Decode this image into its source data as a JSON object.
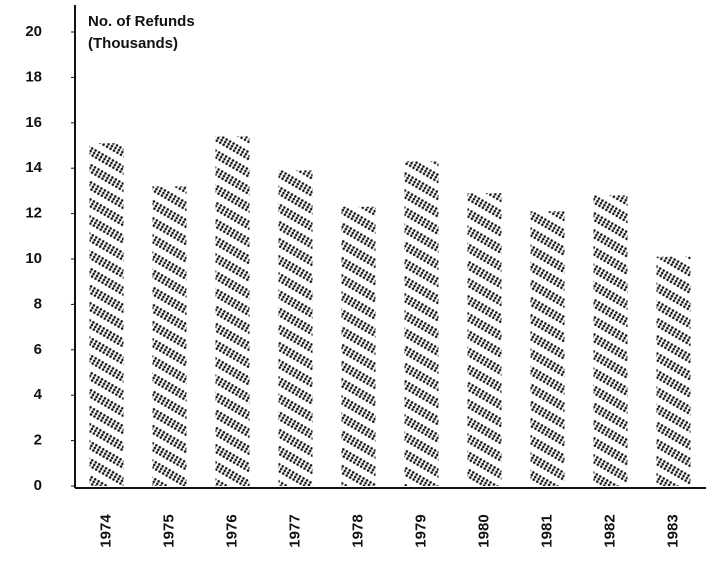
{
  "chart_data": {
    "type": "bar",
    "y_axis_label": [
      "No. of Refunds",
      "(Thousands)"
    ],
    "categories": [
      "1974",
      "1975",
      "1976",
      "1977",
      "1978",
      "1979",
      "1980",
      "1981",
      "1982",
      "1983"
    ],
    "values": [
      15.1,
      13.2,
      15.4,
      13.9,
      12.3,
      14.3,
      12.9,
      12.1,
      12.8,
      10.1
    ],
    "color": "#111111",
    "ylim": [
      0,
      20
    ],
    "yticks": [
      0,
      2,
      4,
      6,
      8,
      10,
      12,
      14,
      16,
      18,
      20
    ],
    "grid": false
  }
}
